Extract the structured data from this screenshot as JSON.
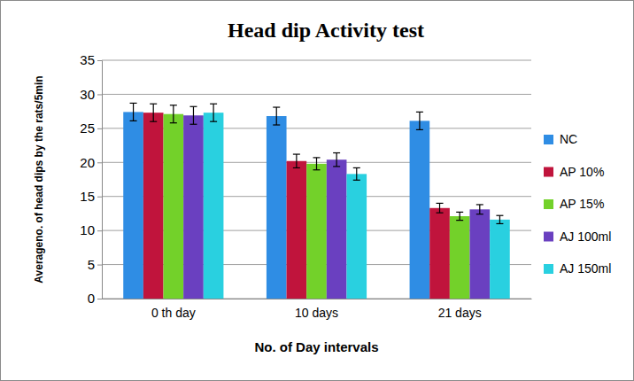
{
  "chart_data": {
    "type": "bar",
    "title": "Head dip Activity test",
    "x_label": "No. of Day intervals",
    "y_label": "Averageno. of head dips by the rats/5min",
    "categories": [
      "0 th day",
      "10 days",
      "21 days"
    ],
    "series": [
      {
        "name": "NC",
        "color": "#2f8de4",
        "values": [
          27.4,
          26.8,
          26.1
        ],
        "errors": [
          1.3,
          1.3,
          1.3
        ]
      },
      {
        "name": "AP 10%",
        "color": "#c0143c",
        "values": [
          27.3,
          20.2,
          13.3
        ],
        "errors": [
          1.3,
          1.0,
          0.7
        ]
      },
      {
        "name": "AP 15%",
        "color": "#73d12a",
        "values": [
          27.1,
          19.8,
          12.1
        ],
        "errors": [
          1.3,
          0.9,
          0.6
        ]
      },
      {
        "name": "AJ 100ml",
        "color": "#6a40c0",
        "values": [
          26.9,
          20.4,
          13.1
        ],
        "errors": [
          1.3,
          1.0,
          0.7
        ]
      },
      {
        "name": "AJ 150ml",
        "color": "#29d0e0",
        "values": [
          27.3,
          18.3,
          11.6
        ],
        "errors": [
          1.3,
          0.9,
          0.6
        ]
      }
    ],
    "ylim": [
      0,
      35
    ],
    "yticks": [
      0,
      5,
      10,
      15,
      20,
      25,
      30,
      35
    ],
    "grid": true,
    "legend": "right"
  }
}
